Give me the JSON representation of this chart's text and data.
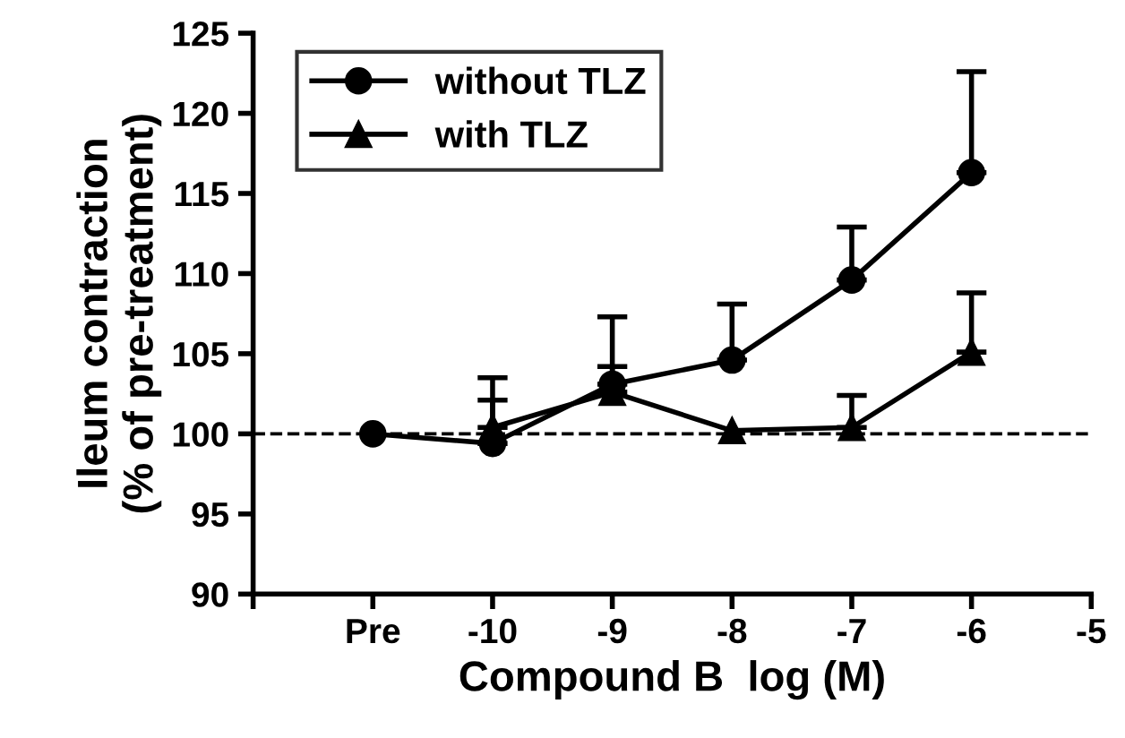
{
  "chart_data": {
    "type": "line",
    "xlabel": "Compound B  log (M)",
    "ylabel": "Ileum contraction\n(% of pre-treatment)",
    "x": [
      -11,
      -10,
      -9,
      -8,
      -7,
      -6
    ],
    "series": [
      {
        "name": "without TLZ",
        "color": "#000000",
        "marker": "circle",
        "values": [
          100,
          99.4,
          103.1,
          104.6,
          109.6,
          116.3
        ],
        "errors": [
          null,
          [
            99.4,
            103.5
          ],
          [
            103.1,
            107.3
          ],
          [
            104.6,
            108.1
          ],
          [
            109.6,
            112.9
          ],
          [
            116.3,
            122.6
          ]
        ]
      },
      {
        "name": "with TLZ",
        "color": "#000000",
        "marker": "triangle",
        "values": [
          null,
          100.4,
          102.6,
          100.2,
          100.4,
          105.1
        ],
        "errors": [
          null,
          [
            100.4,
            102.1
          ],
          [
            102.6,
            104.2
          ],
          null,
          [
            100.4,
            102.4
          ],
          [
            105.1,
            108.8
          ]
        ]
      }
    ],
    "xlim": [
      -12,
      -5
    ],
    "xticks": [
      {
        "value": -12,
        "label": null
      },
      {
        "value": -11,
        "label": "Pre"
      },
      -10,
      -9,
      -8,
      -7,
      -6,
      -5
    ],
    "ylim": [
      90,
      125
    ],
    "yticks": [
      90,
      95,
      100,
      105,
      110,
      115,
      120,
      125
    ],
    "ref_lines": [
      {
        "axis": "y",
        "value": 100,
        "color": "#000000",
        "line_style": "dashed"
      }
    ],
    "legend": "top left",
    "grid": false,
    "line_style": "solid"
  }
}
